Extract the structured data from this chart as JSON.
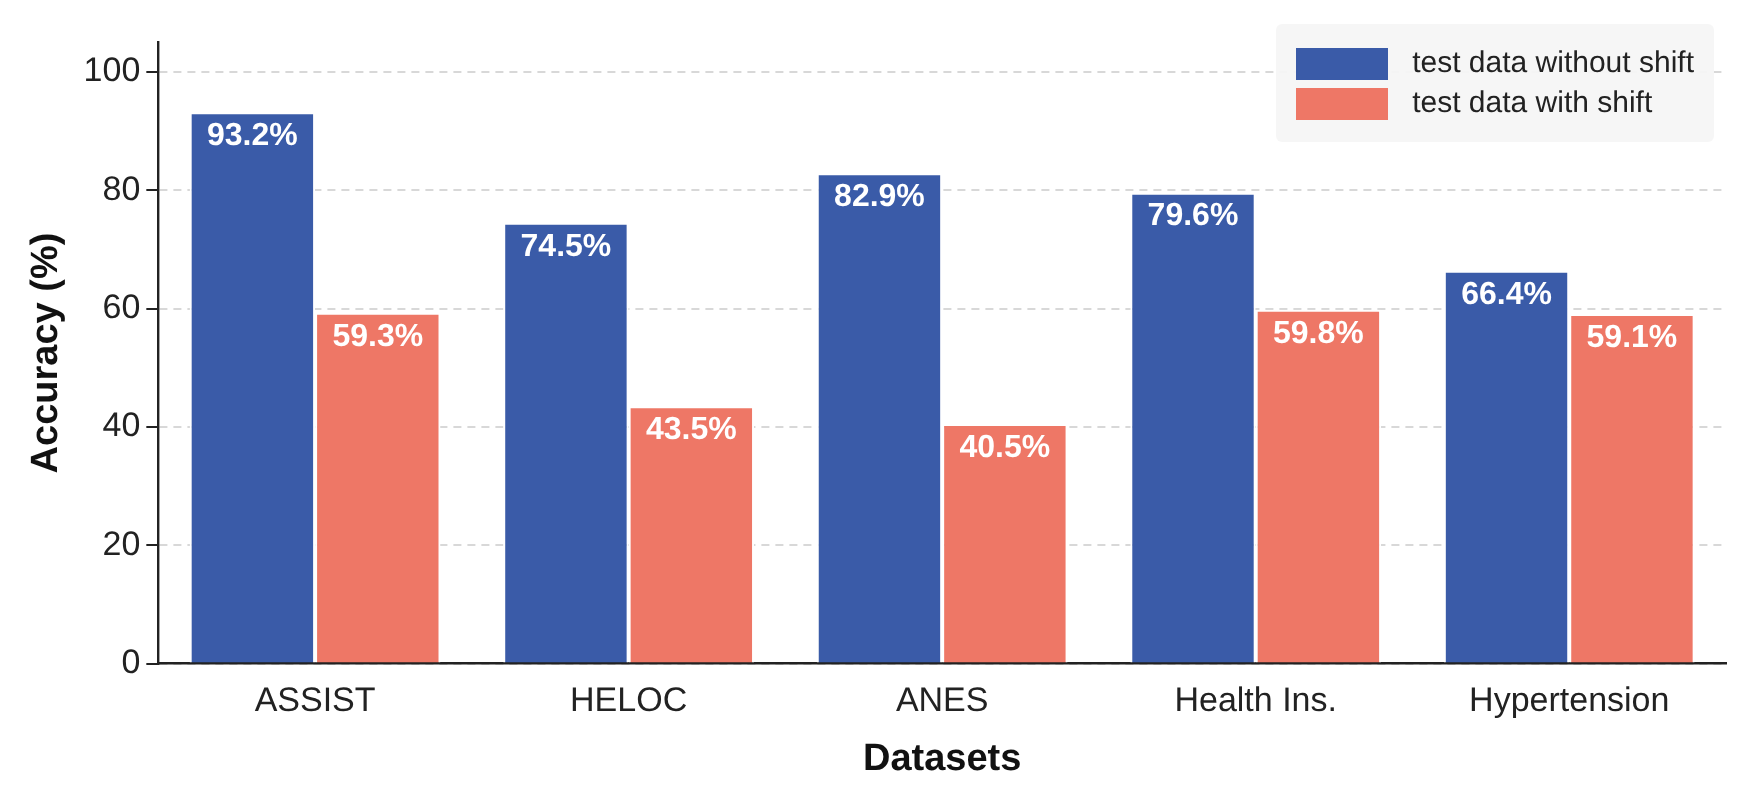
{
  "chart_data": {
    "type": "bar",
    "xlabel": "Datasets",
    "ylabel": "Accuracy (%)",
    "categories": [
      "ASSIST",
      "HELOC",
      "ANES",
      "Health Ins.",
      "Hypertension"
    ],
    "series": [
      {
        "name": "test data without shift",
        "color": "#3a5ba8",
        "values": [
          93.2,
          74.5,
          82.9,
          79.6,
          66.4
        ],
        "value_labels": [
          "93.2%",
          "74.5%",
          "82.9%",
          "79.6%",
          "66.4%"
        ]
      },
      {
        "name": "test data with shift",
        "color": "#ee7766",
        "values": [
          59.3,
          43.5,
          40.5,
          59.8,
          59.1
        ],
        "value_labels": [
          "59.3%",
          "43.5%",
          "40.5%",
          "59.8%",
          "59.1%"
        ]
      }
    ],
    "ylim": [
      0,
      105
    ],
    "yticks": [
      0,
      20,
      40,
      60,
      80,
      100
    ],
    "grid": "y",
    "legend": "top right"
  }
}
